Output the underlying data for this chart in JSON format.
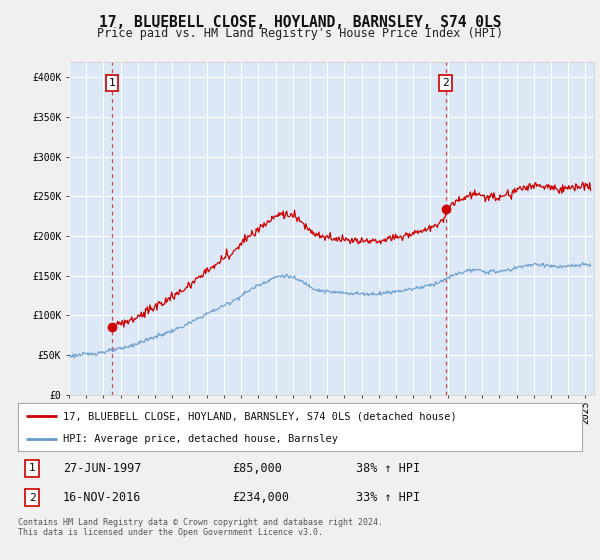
{
  "title": "17, BLUEBELL CLOSE, HOYLAND, BARNSLEY, S74 0LS",
  "subtitle": "Price paid vs. HM Land Registry's House Price Index (HPI)",
  "bg_color": "#f0f0f0",
  "plot_bg_color": "#dce8f5",
  "purchase1": {
    "date_num": 1997.49,
    "price": 85000,
    "label": "1",
    "date_str": "27-JUN-1997",
    "pct": "38%"
  },
  "purchase2": {
    "date_num": 2016.88,
    "price": 234000,
    "label": "2",
    "date_str": "16-NOV-2016",
    "pct": "33%"
  },
  "legend_label1": "17, BLUEBELL CLOSE, HOYLAND, BARNSLEY, S74 0LS (detached house)",
  "legend_label2": "HPI: Average price, detached house, Barnsley",
  "footer": "Contains HM Land Registry data © Crown copyright and database right 2024.\nThis data is licensed under the Open Government Licence v3.0.",
  "xmin": 1995.0,
  "xmax": 2025.5,
  "ymin": 0,
  "ymax": 420000,
  "yticks": [
    0,
    50000,
    100000,
    150000,
    200000,
    250000,
    300000,
    350000,
    400000
  ],
  "ytick_labels": [
    "£0",
    "£50K",
    "£100K",
    "£150K",
    "£200K",
    "£250K",
    "£300K",
    "£350K",
    "£400K"
  ],
  "red_line_color": "#cc0000",
  "blue_line_color": "#6699cc",
  "dot_color": "#cc0000",
  "grid_color": "#ffffff",
  "spine_color": "#cccccc"
}
